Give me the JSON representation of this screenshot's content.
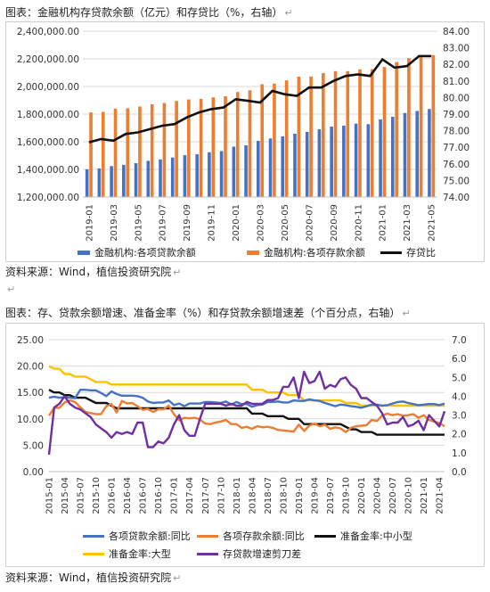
{
  "captions": {
    "chart1_title": "图表：金融机构存贷款余额（亿元）和存贷比（%，右轴）",
    "chart1_source": "资料来源：Wind，植信投资研究院",
    "chart2_title": "图表：存、贷款余额增速、准备金率（%）和存贷款余额增速差（个百分点，右轴）",
    "chart2_source": "资料来源：Wind，植信投资研究院",
    "return_mark": "↵",
    "blank_line_mark": "↵"
  },
  "chart_data": [
    {
      "type": "bar",
      "x": [
        "2019-01",
        "2019-02",
        "2019-03",
        "2019-04",
        "2019-05",
        "2019-06",
        "2019-07",
        "2019-08",
        "2019-09",
        "2019-10",
        "2019-11",
        "2019-12",
        "2020-01",
        "2020-02",
        "2020-03",
        "2020-04",
        "2020-05",
        "2020-06",
        "2020-07",
        "2020-08",
        "2020-09",
        "2020-10",
        "2020-11",
        "2020-12",
        "2021-01",
        "2021-02",
        "2021-03",
        "2021-04",
        "2021-05"
      ],
      "x_tick_labels": [
        "2019-01",
        "2019-03",
        "2019-05",
        "2019-07",
        "2019-09",
        "2019-11",
        "2020-01",
        "2020-03",
        "2020-05",
        "2020-07",
        "2020-09",
        "2020-11",
        "2021-01",
        "2021-03",
        "2021-05"
      ],
      "ylim": [
        1200000,
        2400000
      ],
      "y_ticks": [
        "1,200,000.00",
        "1,400,000.00",
        "1,600,000.00",
        "1,800,000.00",
        "2,000,000.00",
        "2,200,000.00",
        "2,400,000.00"
      ],
      "y2lim": [
        74,
        84
      ],
      "y2_ticks": [
        "74.00",
        "75.00",
        "76.00",
        "77.00",
        "78.00",
        "79.00",
        "80.00",
        "81.00",
        "82.00",
        "83.00",
        "84.00"
      ],
      "legend_position": "bottom",
      "series": [
        {
          "name": "金融机构:各项贷款余额",
          "kind": "bar",
          "axis": "left",
          "color": "#4472C4",
          "values": [
            1401000,
            1407000,
            1424000,
            1433000,
            1445000,
            1462000,
            1472000,
            1486000,
            1503000,
            1510000,
            1524000,
            1532000,
            1565000,
            1574000,
            1607000,
            1624000,
            1639000,
            1658000,
            1671000,
            1691000,
            1710000,
            1717000,
            1731000,
            1727000,
            1762000,
            1781000,
            1808000,
            1823000,
            1837000
          ]
        },
        {
          "name": "金融机构:各项存款余额",
          "kind": "bar",
          "axis": "left",
          "color": "#ED7D31",
          "values": [
            1812000,
            1816000,
            1840000,
            1842000,
            1855000,
            1871000,
            1881000,
            1895000,
            1906000,
            1910000,
            1921000,
            1929000,
            1960000,
            1972000,
            2016000,
            2021000,
            2044000,
            2071000,
            2072000,
            2097000,
            2111000,
            2111000,
            2124000,
            2125000,
            2141000,
            2177000,
            2205000,
            2210000,
            2227000
          ]
        },
        {
          "name": "存贷比",
          "kind": "line",
          "axis": "right",
          "color": "#111111",
          "values": [
            77.3,
            77.5,
            77.4,
            77.8,
            77.9,
            78.1,
            78.3,
            78.4,
            78.8,
            79.1,
            79.3,
            79.4,
            79.9,
            79.8,
            79.7,
            80.4,
            80.2,
            80.1,
            80.6,
            80.6,
            81.0,
            81.3,
            81.4,
            81.3,
            82.3,
            81.8,
            81.9,
            82.5,
            82.5
          ]
        }
      ]
    },
    {
      "type": "line",
      "x_start": "2015-01",
      "x_end": "2021-05",
      "x_tick_labels": [
        "2015-01",
        "2015-04",
        "2015-07",
        "2015-10",
        "2016-01",
        "2016-04",
        "2016-07",
        "2016-10",
        "2017-01",
        "2017-04",
        "2017-07",
        "2017-10",
        "2018-01",
        "2018-04",
        "2018-07",
        "2018-10",
        "2019-01",
        "2019-04",
        "2019-07",
        "2019-10",
        "2020-01",
        "2020-04",
        "2020-07",
        "2020-10",
        "2021-01",
        "2021-04"
      ],
      "ylim": [
        0,
        25
      ],
      "y_ticks": [
        "0.00",
        "5.00",
        "10.00",
        "15.00",
        "20.00",
        "25.00"
      ],
      "y2lim": [
        0,
        7
      ],
      "y2_ticks": [
        "0.0",
        "1.0",
        "2.0",
        "3.0",
        "4.0",
        "5.0",
        "6.0",
        "7.0"
      ],
      "legend_position": "bottom",
      "series": [
        {
          "name": "各项贷款余额:同比",
          "axis": "left",
          "color": "#4472C4",
          "values": [
            14.0,
            14.2,
            14.0,
            14.1,
            14.0,
            13.9,
            15.5,
            15.5,
            15.4,
            15.4,
            14.9,
            14.3,
            15.2,
            14.7,
            14.4,
            14.4,
            14.4,
            14.3,
            14.0,
            13.3,
            13.0,
            13.1,
            13.1,
            13.5,
            12.6,
            12.9,
            12.4,
            12.9,
            12.9,
            12.9,
            13.2,
            13.2,
            13.1,
            13.0,
            13.3,
            12.7,
            13.2,
            12.8,
            12.8,
            12.3,
            12.6,
            12.7,
            13.2,
            13.2,
            13.3,
            13.1,
            13.1,
            13.5,
            13.4,
            13.4,
            13.7,
            13.5,
            13.4,
            13.0,
            12.7,
            12.4,
            12.7,
            12.6,
            12.4,
            12.3,
            12.1,
            12.4,
            12.7,
            12.7,
            12.5,
            12.6,
            12.9,
            13.2,
            13.3,
            13.0,
            12.8,
            12.6,
            12.7,
            12.8,
            12.8,
            12.6,
            12.9
          ]
        },
        {
          "name": "各项存款余额:同比",
          "axis": "left",
          "color": "#ED7D31",
          "values": [
            10.6,
            12.1,
            12.1,
            13.1,
            13.5,
            13.2,
            12.2,
            11.3,
            11.1,
            10.9,
            10.9,
            12.4,
            12.8,
            11.2,
            13.4,
            12.9,
            13.0,
            12.4,
            11.7,
            11.9,
            11.3,
            11.8,
            11.8,
            12.5,
            10.9,
            9.7,
            10.2,
            10.1,
            10.2,
            9.9,
            9.1,
            9.0,
            9.3,
            9.5,
            9.8,
            9.0,
            9.0,
            8.3,
            8.5,
            8.1,
            8.6,
            8.4,
            8.5,
            8.3,
            7.9,
            7.8,
            7.7,
            7.6,
            8.9,
            7.7,
            8.7,
            9.1,
            8.6,
            8.9,
            8.1,
            8.4,
            8.2,
            7.5,
            8.3,
            8.6,
            8.7,
            8.8,
            9.8,
            9.6,
            10.6,
            11.0,
            10.7,
            10.9,
            10.6,
            10.7,
            10.9,
            10.2,
            10.7,
            9.8,
            9.5,
            9.2,
            8.6
          ]
        },
        {
          "name": "准备金率:中小型",
          "axis": "left",
          "color": "#111111",
          "values": [
            15.5,
            15.0,
            15.0,
            14.5,
            14.5,
            14.0,
            14.0,
            14.0,
            13.5,
            13.0,
            13.0,
            13.0,
            12.5,
            12.0,
            12.0,
            12.0,
            12.0,
            12.0,
            12.0,
            12.0,
            12.0,
            12.0,
            12.0,
            12.0,
            12.0,
            12.0,
            12.0,
            12.0,
            12.0,
            12.0,
            12.0,
            12.0,
            12.0,
            12.0,
            12.0,
            12.0,
            12.0,
            12.0,
            12.0,
            11.0,
            11.0,
            11.0,
            10.5,
            10.5,
            10.5,
            10.5,
            10.0,
            10.0,
            10.0,
            9.0,
            9.0,
            9.0,
            9.0,
            9.0,
            9.0,
            9.0,
            9.0,
            8.5,
            8.0,
            8.0,
            7.5,
            7.5,
            7.5,
            7.0,
            7.0,
            7.0,
            7.0,
            7.0,
            7.0,
            7.0,
            7.0,
            7.0,
            7.0,
            7.0,
            7.0,
            7.0,
            7.0
          ]
        },
        {
          "name": "准备金率:大型",
          "axis": "left",
          "color": "#FFC000",
          "values": [
            20.0,
            19.5,
            19.5,
            18.5,
            18.5,
            18.0,
            18.0,
            18.0,
            17.5,
            17.0,
            17.0,
            17.0,
            16.5,
            16.5,
            16.5,
            16.5,
            16.5,
            16.5,
            16.5,
            16.5,
            16.5,
            16.5,
            16.5,
            16.5,
            16.5,
            16.5,
            16.5,
            16.5,
            16.5,
            16.5,
            16.5,
            16.5,
            16.5,
            16.5,
            16.5,
            16.5,
            16.5,
            16.5,
            16.5,
            15.5,
            15.5,
            15.5,
            15.0,
            15.0,
            15.0,
            15.0,
            14.5,
            14.5,
            14.5,
            13.5,
            13.5,
            13.5,
            13.5,
            13.5,
            13.5,
            13.5,
            13.5,
            13.0,
            13.0,
            13.0,
            12.5,
            12.5,
            12.5,
            12.5,
            12.5,
            12.5,
            12.5,
            12.5,
            12.5,
            12.5,
            12.5,
            12.5,
            12.5,
            12.5,
            12.5,
            12.5,
            12.5
          ]
        },
        {
          "name": "存贷款增速剪刀差",
          "axis": "right",
          "color": "#7030A0",
          "values": [
            0.9,
            3.4,
            3.6,
            4.0,
            3.6,
            3.4,
            3.3,
            3.1,
            2.9,
            2.5,
            2.3,
            2.1,
            1.8,
            2.1,
            2.0,
            2.1,
            2.0,
            2.6,
            2.6,
            1.3,
            1.3,
            1.6,
            1.5,
            1.8,
            2.5,
            3.0,
            2.2,
            1.9,
            1.9,
            2.8,
            3.6,
            3.6,
            3.6,
            3.6,
            3.5,
            3.6,
            3.5,
            3.5,
            3.7,
            3.6,
            3.6,
            3.6,
            3.8,
            3.8,
            3.9,
            4.5,
            4.5,
            5.0,
            3.9,
            5.3,
            4.7,
            4.8,
            5.3,
            4.4,
            4.6,
            4.5,
            4.9,
            5.0,
            4.6,
            4.4,
            3.9,
            3.9,
            3.7,
            3.5,
            3.1,
            2.5,
            2.6,
            2.6,
            2.9,
            2.4,
            2.5,
            2.7,
            2.2,
            3.0,
            2.7,
            2.4,
            3.2
          ]
        }
      ]
    }
  ]
}
